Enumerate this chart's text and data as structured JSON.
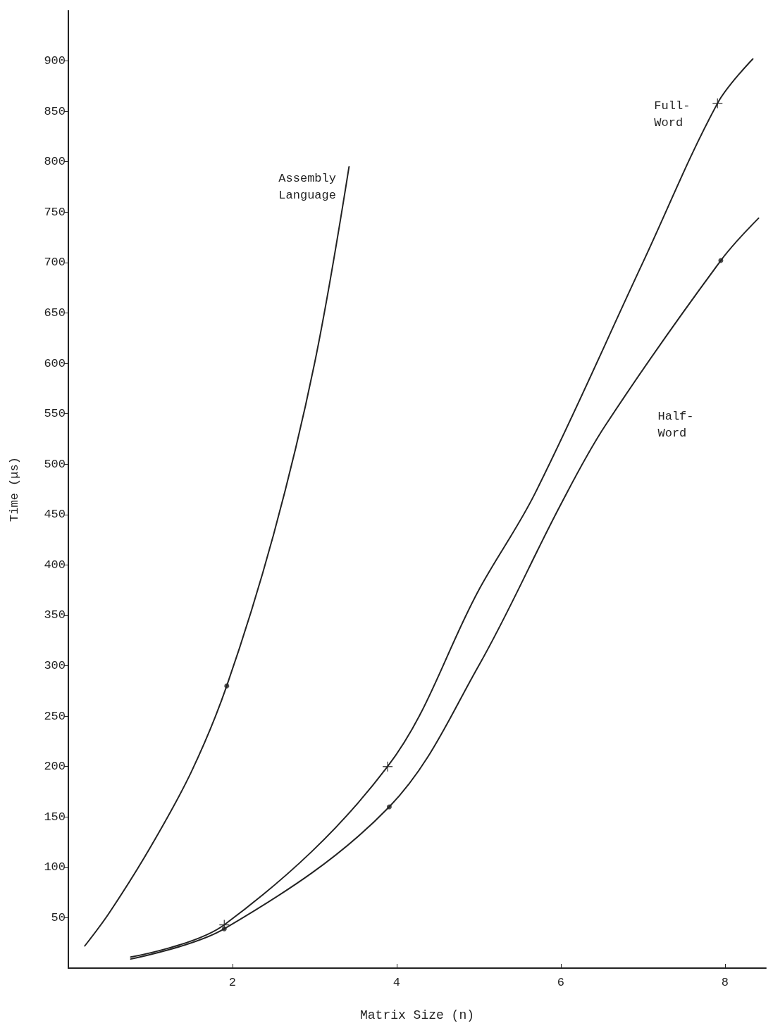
{
  "chart_data": {
    "type": "line",
    "xlabel": "Matrix Size (n)",
    "ylabel": "Time (μs)",
    "xlim": [
      0,
      8.5
    ],
    "xticks": [
      2,
      4,
      6,
      8
    ],
    "ylim": [
      0,
      950
    ],
    "yticks": [
      50,
      100,
      150,
      200,
      250,
      300,
      350,
      400,
      450,
      500,
      550,
      600,
      650,
      700,
      750,
      800,
      850,
      900
    ],
    "grid": false,
    "legend": false,
    "marker": "none",
    "line_style": "solid",
    "series": [
      {
        "name": "Assembly Language",
        "color": "#222222",
        "x": [
          0.2,
          0.5,
          1,
          1.5,
          1.93,
          2.5,
          3,
          3.42
        ],
        "values": [
          22,
          55,
          120,
          195,
          280,
          430,
          600,
          795
        ]
      },
      {
        "name": "Full-Word",
        "color": "#222222",
        "x": [
          0.76,
          1.9,
          3.89,
          5,
          5.68,
          7,
          7.91,
          8.34
        ],
        "values": [
          11,
          43,
          200,
          375,
          470,
          700,
          858,
          902
        ]
      },
      {
        "name": "Half-Word",
        "color": "#222222",
        "x": [
          0.76,
          1.9,
          3.91,
          5,
          6,
          6.54,
          7.95,
          8.41
        ],
        "values": [
          9,
          39,
          160,
          300,
          460,
          538,
          702,
          744
        ]
      },
      {
        "type": "scatter",
        "marker": "circle",
        "color": "#222222",
        "x": [
          1.93,
          1.9,
          3.91,
          7.95
        ],
        "values": [
          280,
          39,
          160,
          702
        ]
      },
      {
        "type": "scatter",
        "marker": "cross",
        "color": "#222222",
        "x": [
          1.9,
          3.89,
          7.91
        ],
        "values": [
          43,
          200,
          858
        ]
      }
    ]
  }
}
